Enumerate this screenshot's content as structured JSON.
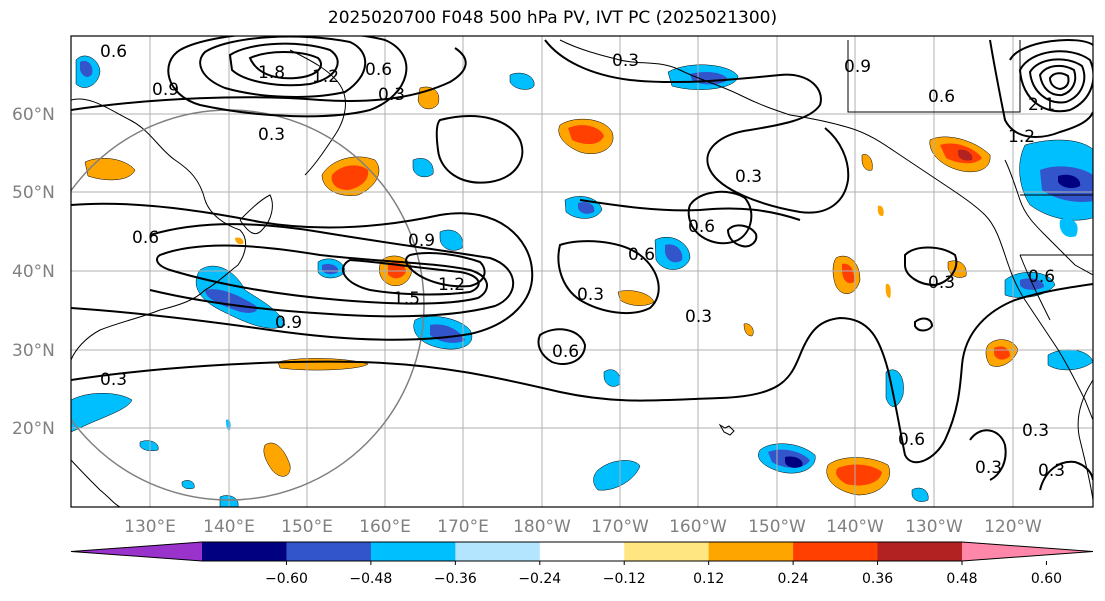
{
  "title": "2025020700 F048 500 hPa PV, IVT PC (2025021300)",
  "lat_labels": [
    "60°N",
    "50°N",
    "40°N",
    "30°N",
    "20°N"
  ],
  "lon_labels": [
    "130°E",
    "140°E",
    "150°E",
    "160°E",
    "170°E",
    "180°W",
    "170°W",
    "160°W",
    "150°W",
    "140°W",
    "130°W",
    "120°W"
  ],
  "colorbar": {
    "ticks": [
      "−0.60",
      "−0.48",
      "−0.36",
      "−0.24",
      "−0.12",
      "0.12",
      "0.24",
      "0.36",
      "0.48",
      "0.60"
    ],
    "colors": [
      "#9933cc",
      "#000080",
      "#3355cc",
      "#00bfff",
      "#b3e5ff",
      "#ffffff",
      "#ffe680",
      "#ffa500",
      "#ff4000",
      "#b22222",
      "#ff88aa"
    ]
  },
  "contour_labels": [
    "0.6",
    "1.8",
    "1.2",
    "0.6",
    "0.3",
    "0.9",
    "0.9",
    "0.6",
    "0.3",
    "2.1",
    "1.2",
    "0.3",
    "0.3",
    "0.6",
    "0.9",
    "0.6",
    "0.6",
    "1.5",
    "1.2",
    "0.9",
    "0.3",
    "0.3",
    "0.6",
    "0.3",
    "0.6",
    "0.3",
    "0.6",
    "0.3",
    "0.3",
    "0.3"
  ],
  "colors": {
    "contour": "#000000",
    "grid": "#b0b0b0",
    "coast": "#000000",
    "circle": "#808080"
  }
}
